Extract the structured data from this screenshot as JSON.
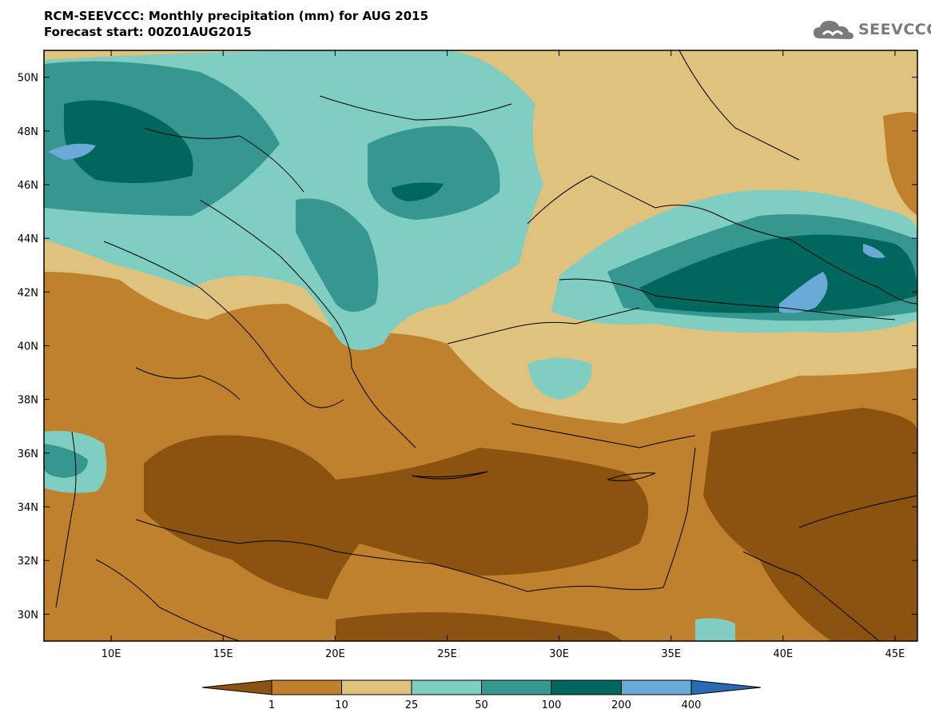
{
  "header": {
    "title_line1": "RCM-SEEVCCC: Monthly precipitation (mm) for AUG 2015",
    "title_line2": "Forecast start: 00Z01AUG2015",
    "logo_text": "SEEVCCC"
  },
  "map": {
    "lon_range": [
      7,
      46
    ],
    "lat_range": [
      29,
      51
    ],
    "lon_ticks": [
      "10E",
      "15E",
      "20E",
      "25E",
      "30E",
      "35E",
      "40E",
      "45E"
    ],
    "lat_ticks": [
      "30N",
      "32N",
      "34N",
      "36N",
      "38N",
      "40N",
      "42N",
      "44N",
      "46N",
      "48N",
      "50N"
    ]
  },
  "colorbar": {
    "labels": [
      "1",
      "10",
      "25",
      "50",
      "100",
      "200",
      "400"
    ],
    "colors": [
      "#8b5210",
      "#bf812d",
      "#dfc27d",
      "#80cdc1",
      "#35978f",
      "#01665e",
      "#6ba9d6",
      "#2a6ab0"
    ]
  }
}
